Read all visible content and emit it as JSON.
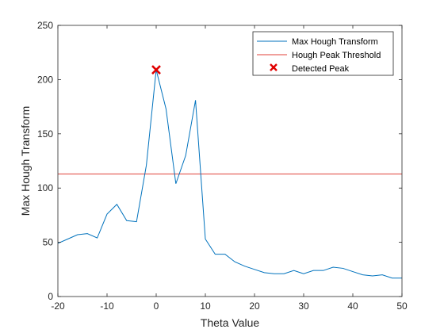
{
  "chart_data": {
    "type": "line",
    "xlabel": "Theta Value",
    "ylabel": "Max Hough Transform",
    "xlim": [
      -20,
      50
    ],
    "ylim": [
      0,
      250
    ],
    "xticks": [
      -20,
      -10,
      0,
      10,
      20,
      30,
      40,
      50
    ],
    "yticks": [
      0,
      50,
      100,
      150,
      200,
      250
    ],
    "grid": false,
    "legend_position": "top-right",
    "series": [
      {
        "name": "Max Hough Transform",
        "color": "#0072BD",
        "x": [
          -20,
          -18,
          -16,
          -14,
          -12,
          -10,
          -8,
          -6,
          -4,
          -2,
          0,
          2,
          4,
          6,
          8,
          10,
          12,
          14,
          16,
          18,
          20,
          22,
          24,
          26,
          28,
          30,
          32,
          34,
          36,
          38,
          40,
          42,
          44,
          46,
          48,
          50
        ],
        "y": [
          49,
          53,
          57,
          58,
          54,
          76,
          85,
          70,
          69,
          121,
          209,
          173,
          104,
          130,
          181,
          53,
          39,
          39,
          32,
          28,
          25,
          22,
          21,
          21,
          24,
          21,
          24,
          24,
          27,
          26,
          23,
          20,
          19,
          20,
          17,
          17
        ]
      },
      {
        "name": "Hough Peak Threshold",
        "color": "#E0403A",
        "type": "hline",
        "y": 113
      },
      {
        "name": "Detected Peak",
        "color": "#E00000",
        "type": "marker",
        "marker": "x",
        "x": [
          0
        ],
        "y": [
          209
        ]
      }
    ]
  }
}
